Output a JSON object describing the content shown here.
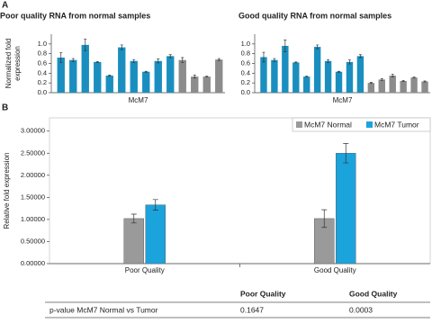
{
  "panel_labels": [
    "A",
    "B"
  ],
  "chart_data": [
    {
      "type": "bar",
      "title": "Poor quality RNA from normal samples",
      "ylabel": "Normalized fold expression",
      "xlabel": "McM7",
      "values": [
        0.72,
        0.67,
        0.98,
        0.63,
        0.35,
        0.93,
        0.65,
        0.43,
        0.65,
        0.75,
        0.67,
        0.33,
        0.33,
        0.68
      ],
      "errors": [
        0.1,
        0.03,
        0.12,
        0.01,
        0.01,
        0.05,
        0.03,
        0.01,
        0.04,
        0.03,
        0.05,
        0.03,
        0.01,
        0.02
      ],
      "colors": [
        "#1a8fbf",
        "#1a8fbf",
        "#1a8fbf",
        "#1a8fbf",
        "#1a8fbf",
        "#1a8fbf",
        "#1a8fbf",
        "#1a8fbf",
        "#1a8fbf",
        "#1a8fbf",
        "#8c8c8c",
        "#8c8c8c",
        "#8c8c8c",
        "#8c8c8c"
      ],
      "ylim": [
        0,
        1.2
      ],
      "yticks": [
        {
          "value": 0,
          "label": "0.0"
        },
        {
          "value": 0.2,
          "label": "0.2"
        },
        {
          "value": 0.4,
          "label": "0.4"
        },
        {
          "value": 0.6,
          "label": "0.6"
        },
        {
          "value": 0.8,
          "label": "0.8"
        },
        {
          "value": 1,
          "label": "1.0"
        }
      ]
    },
    {
      "type": "bar",
      "title": "Good quality RNA from normal samples",
      "xlabel": "McM7",
      "values": [
        0.73,
        0.67,
        0.96,
        0.62,
        0.33,
        0.94,
        0.65,
        0.43,
        0.63,
        0.75,
        0.2,
        0.27,
        0.35,
        0.24,
        0.31,
        0.23
      ],
      "errors": [
        0.1,
        0.03,
        0.12,
        0.01,
        0.01,
        0.04,
        0.03,
        0.01,
        0.04,
        0.03,
        0.01,
        0.02,
        0.03,
        0.01,
        0.01,
        0.01
      ],
      "colors": [
        "#1a8fbf",
        "#1a8fbf",
        "#1a8fbf",
        "#1a8fbf",
        "#1a8fbf",
        "#1a8fbf",
        "#1a8fbf",
        "#1a8fbf",
        "#1a8fbf",
        "#1a8fbf",
        "#8c8c8c",
        "#8c8c8c",
        "#8c8c8c",
        "#8c8c8c",
        "#8c8c8c",
        "#8c8c8c"
      ],
      "ylim": [
        0,
        1.2
      ],
      "yticks": [
        {
          "value": 0,
          "label": "0.0"
        },
        {
          "value": 0.2,
          "label": "0.2"
        },
        {
          "value": 0.4,
          "label": "0.4"
        },
        {
          "value": 0.6,
          "label": "0.6"
        },
        {
          "value": 0.8,
          "label": "0.8"
        },
        {
          "value": 1,
          "label": "1.0"
        }
      ]
    },
    {
      "type": "grouped_bar",
      "ylabel": "Relative fold expression",
      "categories": [
        "Poor Quality",
        "Good Quality"
      ],
      "series": [
        {
          "name": "McM7 Normal",
          "color": "#9a9a9a",
          "values": [
            1.02,
            1.02
          ],
          "errors": [
            0.1,
            0.2
          ]
        },
        {
          "name": "McM7 Tumor",
          "color": "#1ba3dc",
          "values": [
            1.33,
            2.5
          ],
          "errors": [
            0.12,
            0.22
          ]
        }
      ],
      "legend": "upper right",
      "ylim": [
        0,
        3.3
      ],
      "yticks": [
        {
          "value": 0,
          "label": "0.00000"
        },
        {
          "value": 0.5,
          "label": "0.50000"
        },
        {
          "value": 1,
          "label": "1.00000"
        },
        {
          "value": 1.5,
          "label": "1.50000"
        },
        {
          "value": 2,
          "label": "2.00000"
        },
        {
          "value": 2.5,
          "label": "2.50000"
        },
        {
          "value": 3,
          "label": "3.00000"
        }
      ]
    }
  ],
  "table": {
    "header": [
      "Poor Quality",
      "Good Quality"
    ],
    "rows": [
      [
        "p-value McM7 Normal vs Tumor",
        "0.1647",
        "0.0003"
      ]
    ]
  }
}
